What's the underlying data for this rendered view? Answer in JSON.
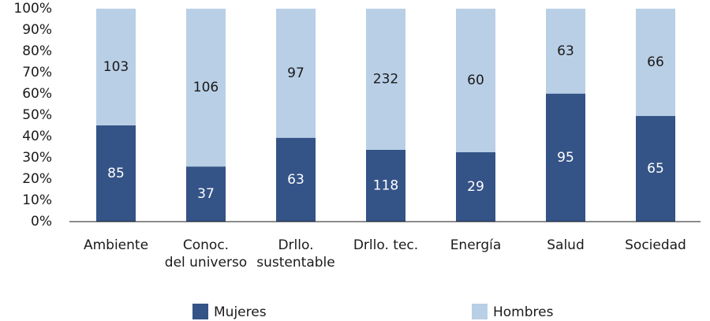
{
  "chart_data": {
    "type": "bar",
    "stacked": "percent",
    "categories": [
      "Ambiente",
      "Conoc.\ndel universo",
      "Drllo.\nsustentable",
      "Drllo. tec.",
      "Energía",
      "Salud",
      "Sociedad"
    ],
    "series": [
      {
        "name": "Mujeres",
        "color": "#345387",
        "label_color": "#ffffff",
        "values": [
          85,
          37,
          63,
          118,
          29,
          95,
          65
        ]
      },
      {
        "name": "Hombres",
        "color": "#b9cfe6",
        "label_color": "#1a1a1a",
        "values": [
          103,
          106,
          97,
          232,
          60,
          63,
          66
        ]
      }
    ],
    "ylim": [
      0,
      100
    ],
    "yticks": [
      {
        "value": 0,
        "label": "0%"
      },
      {
        "value": 10,
        "label": "10%"
      },
      {
        "value": 20,
        "label": "20%"
      },
      {
        "value": 30,
        "label": "30%"
      },
      {
        "value": 40,
        "label": "40%"
      },
      {
        "value": 50,
        "label": "50%"
      },
      {
        "value": 60,
        "label": "60%"
      },
      {
        "value": 70,
        "label": "70%"
      },
      {
        "value": 80,
        "label": "80%"
      },
      {
        "value": 90,
        "label": "90%"
      },
      {
        "value": 100,
        "label": "100%"
      }
    ],
    "grid": false,
    "legend": "bottom"
  }
}
